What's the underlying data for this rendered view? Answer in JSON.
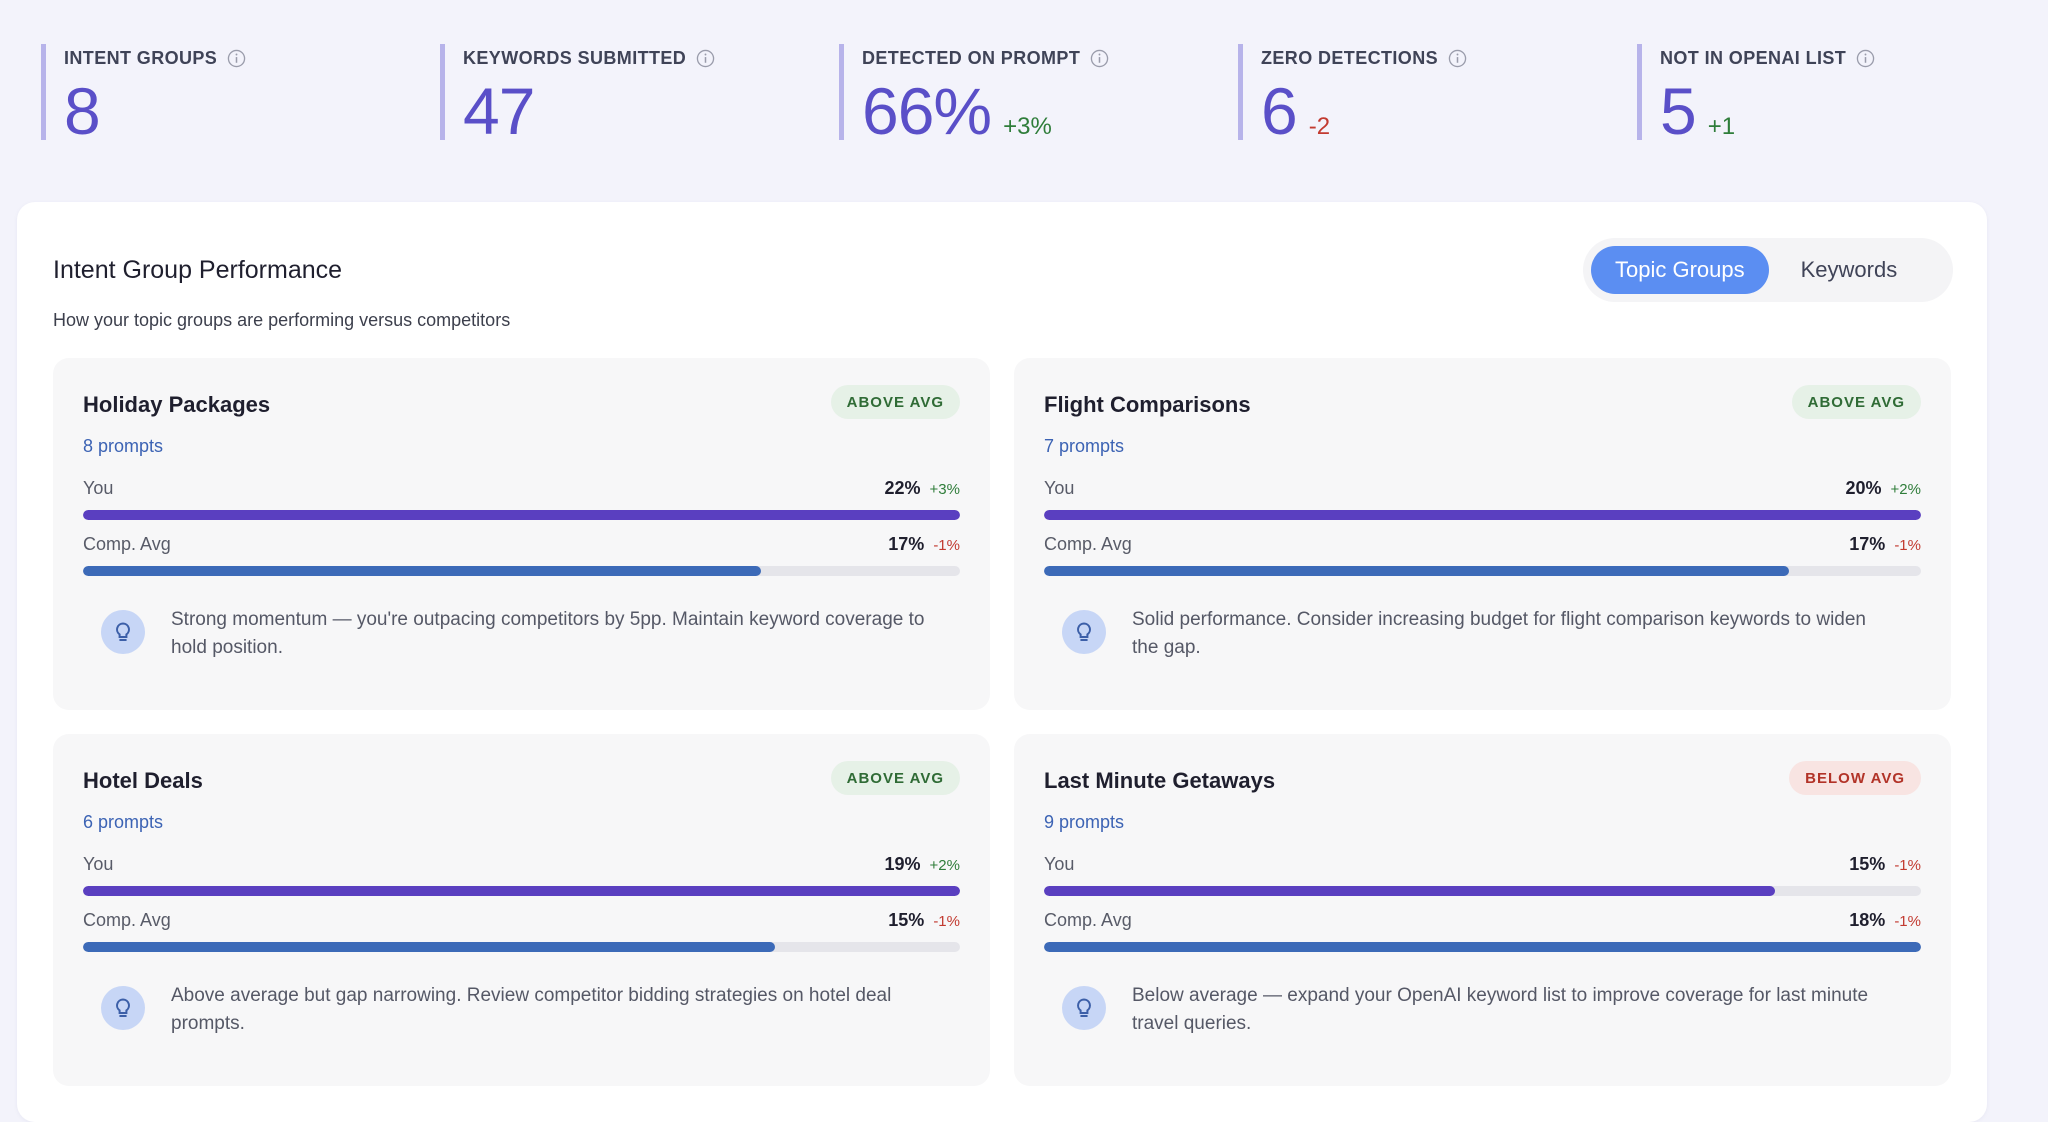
{
  "stats": [
    {
      "label": "INTENT GROUPS",
      "value": "8",
      "delta": "",
      "delta_sign": ""
    },
    {
      "label": "KEYWORDS SUBMITTED",
      "value": "47",
      "delta": "",
      "delta_sign": ""
    },
    {
      "label": "DETECTED ON PROMPT",
      "value": "66%",
      "delta": "+3%",
      "delta_sign": "pos"
    },
    {
      "label": "ZERO DETECTIONS",
      "value": "6",
      "delta": "-2",
      "delta_sign": "neg"
    },
    {
      "label": "NOT IN OPENAI LIST",
      "value": "5",
      "delta": "+1",
      "delta_sign": "pos"
    }
  ],
  "panel": {
    "title": "Intent Group Performance",
    "subtitle": "How your topic groups are performing versus competitors",
    "toggle": {
      "topic_groups": "Topic Groups",
      "keywords": "Keywords",
      "active": "topic_groups"
    }
  },
  "cards": [
    {
      "title": "Holiday Packages",
      "badge": "ABOVE AVG",
      "badge_type": "above",
      "prompts": "8 prompts",
      "you": {
        "label": "You",
        "value": "22%",
        "delta": "+3%",
        "delta_sign": "pos",
        "fill": 1.0
      },
      "comp": {
        "label": "Comp. Avg",
        "value": "17%",
        "delta": "-1%",
        "delta_sign": "neg",
        "fill": 0.773
      },
      "tip": "Strong momentum — you're outpacing competitors by 5pp. Maintain keyword coverage to hold position."
    },
    {
      "title": "Flight Comparisons",
      "badge": "ABOVE AVG",
      "badge_type": "above",
      "prompts": "7 prompts",
      "you": {
        "label": "You",
        "value": "20%",
        "delta": "+2%",
        "delta_sign": "pos",
        "fill": 1.0
      },
      "comp": {
        "label": "Comp. Avg",
        "value": "17%",
        "delta": "-1%",
        "delta_sign": "neg",
        "fill": 0.85
      },
      "tip": "Solid performance. Consider increasing budget for flight comparison keywords to widen the gap."
    },
    {
      "title": "Hotel Deals",
      "badge": "ABOVE AVG",
      "badge_type": "above",
      "prompts": "6 prompts",
      "you": {
        "label": "You",
        "value": "19%",
        "delta": "+2%",
        "delta_sign": "pos",
        "fill": 1.0
      },
      "comp": {
        "label": "Comp. Avg",
        "value": "15%",
        "delta": "-1%",
        "delta_sign": "neg",
        "fill": 0.789
      },
      "tip": "Above average but gap narrowing. Review competitor bidding strategies on hotel deal prompts."
    },
    {
      "title": "Last Minute Getaways",
      "badge": "BELOW AVG",
      "badge_type": "below",
      "prompts": "9 prompts",
      "you": {
        "label": "You",
        "value": "15%",
        "delta": "-1%",
        "delta_sign": "neg",
        "fill": 0.833
      },
      "comp": {
        "label": "Comp. Avg",
        "value": "18%",
        "delta": "-1%",
        "delta_sign": "neg",
        "fill": 1.0
      },
      "tip": "Below average — expand your OpenAI keyword list to improve coverage for last minute travel queries."
    }
  ]
}
